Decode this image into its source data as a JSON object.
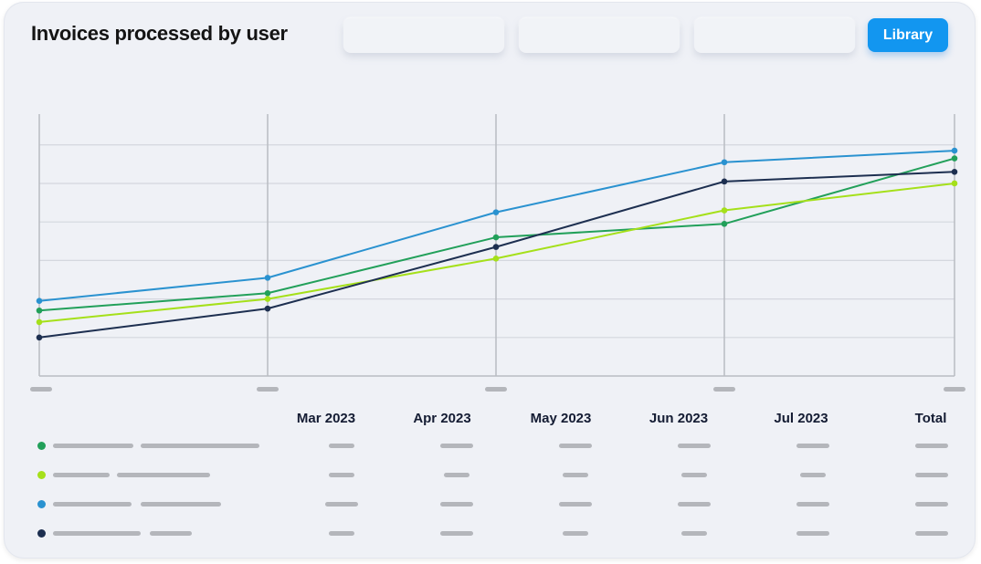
{
  "header": {
    "title": "Invoices processed by user",
    "library_label": "Library"
  },
  "table": {
    "columns": [
      "Mar 2023",
      "Apr 2023",
      "May 2023",
      "Jun 2023",
      "Jul 2023",
      "Total"
    ]
  },
  "colors": {
    "accent": "#1296f0",
    "series": [
      "#22a05a",
      "#a5e01a",
      "#2a92d0",
      "#1d2f50"
    ]
  },
  "chart_data": {
    "type": "line",
    "title": "Invoices processed by user",
    "x_tick_labels_redacted": true,
    "categories": [
      "",
      "",
      "",
      "",
      ""
    ],
    "grid": true,
    "ylim": [
      0,
      6.8
    ],
    "series": [
      {
        "color": "#22a05a",
        "values": [
          1.7,
          2.15,
          3.6,
          3.95,
          5.65
        ]
      },
      {
        "color": "#a5e01a",
        "values": [
          1.4,
          2.0,
          3.05,
          4.3,
          5.0
        ]
      },
      {
        "color": "#2a92d0",
        "values": [
          1.95,
          2.55,
          4.25,
          5.55,
          5.85
        ]
      },
      {
        "color": "#1d2f50",
        "values": [
          1.0,
          1.75,
          3.35,
          5.05,
          5.3
        ]
      }
    ]
  }
}
